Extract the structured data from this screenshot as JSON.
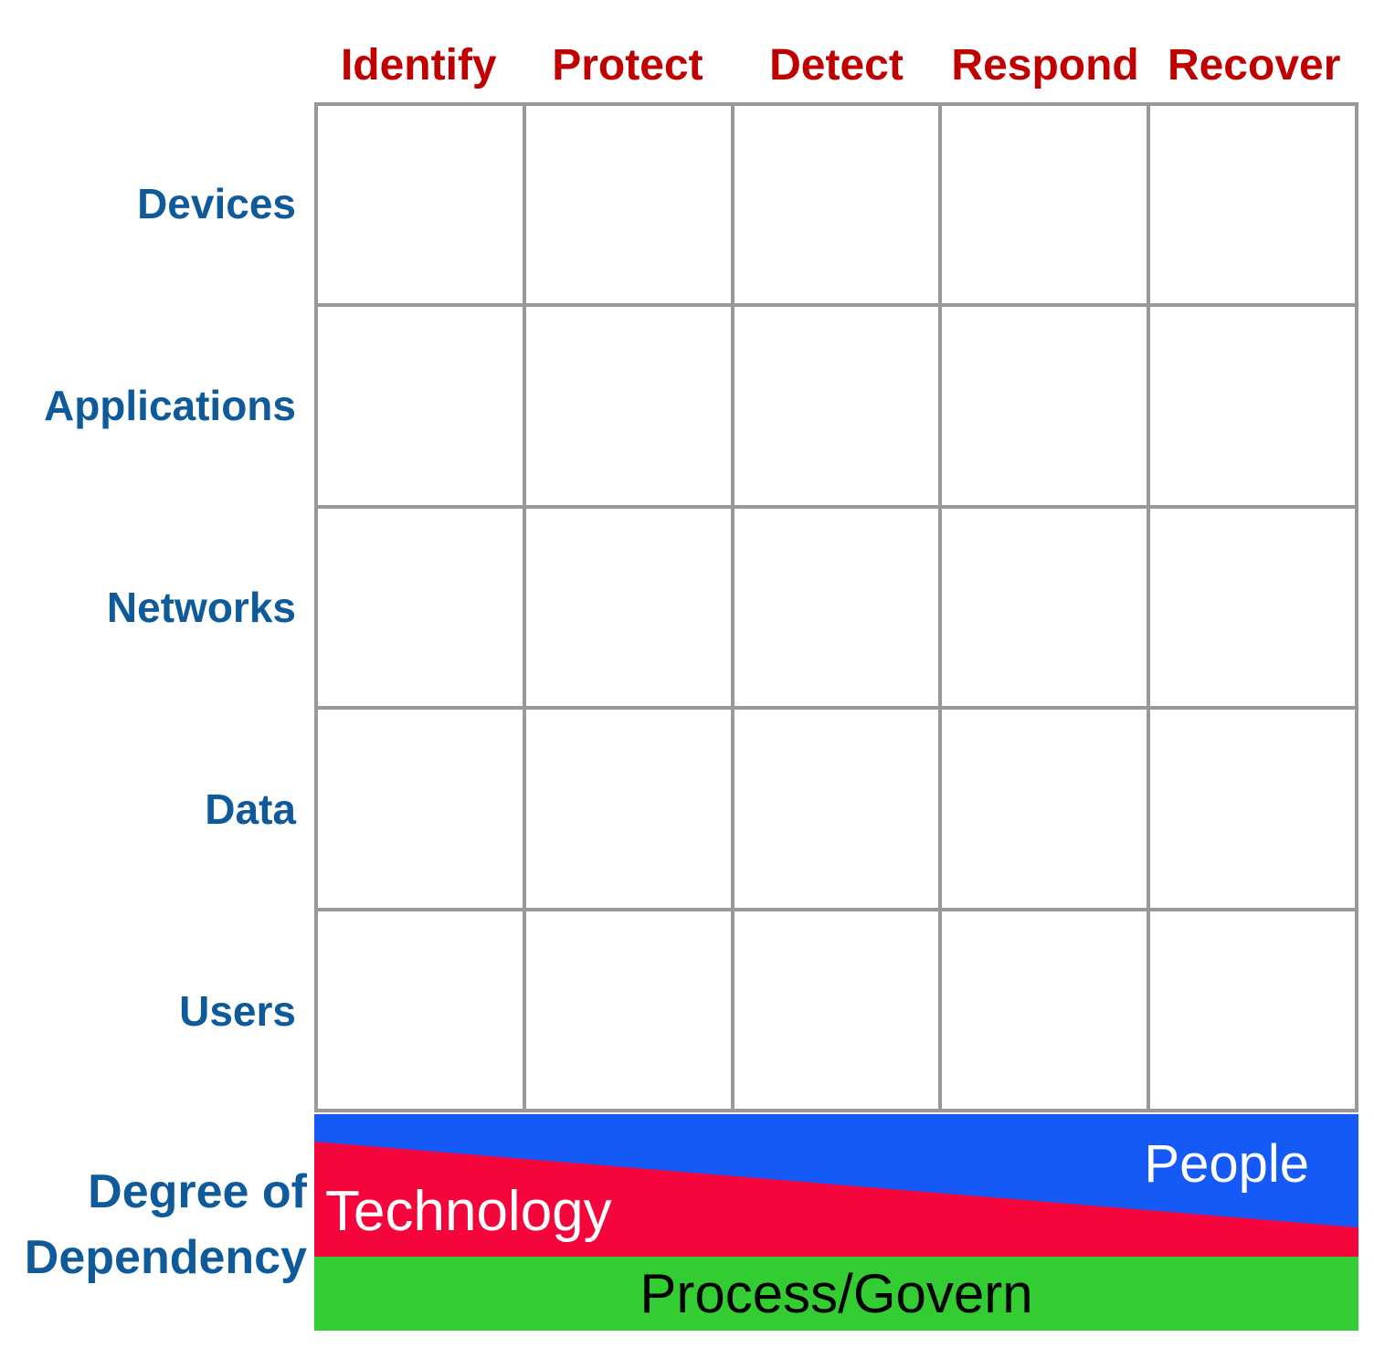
{
  "columns": [
    "Identify",
    "Protect",
    "Detect",
    "Respond",
    "Recover"
  ],
  "rows": [
    "Devices",
    "Applications",
    "Networks",
    "Data",
    "Users"
  ],
  "grid": {
    "columns": 5,
    "rows": 5
  },
  "dependency_label": {
    "line1": "Degree of",
    "line2": "Dependency"
  },
  "bands": {
    "people": {
      "label": "People",
      "color": "#155AF7",
      "text_color": "#FFFFFF"
    },
    "technology": {
      "label": "Technology",
      "color": "#F4063C",
      "text_color": "#FFFFFF"
    },
    "process_govern": {
      "label": "Process/Govern",
      "color": "#33CC33",
      "text_color": "#000000"
    }
  },
  "colors": {
    "header_text": "#C00000",
    "row_label_text": "#0E5A9A",
    "grid_line": "#999999",
    "background": "#FFFFFF"
  }
}
